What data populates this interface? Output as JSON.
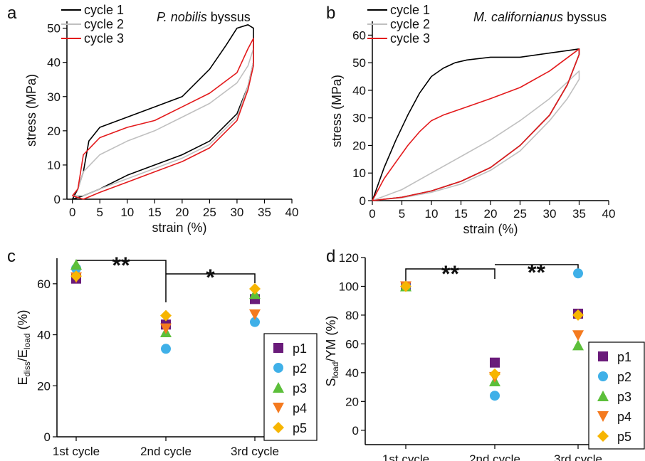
{
  "panels": [
    {
      "letter": "a",
      "title_italic": "P. nobilis",
      "title_rest": " byssus",
      "xlabel": "strain (%)",
      "ylabel": "stress (MPa)",
      "xticks": [
        "0",
        "5",
        "10",
        "15",
        "20",
        "25",
        "30",
        "35",
        "40"
      ],
      "yticks": [
        "0",
        "10",
        "20",
        "30",
        "40",
        "50"
      ],
      "legend": [
        "cycle 1",
        "cycle 2",
        "cycle 3"
      ]
    },
    {
      "letter": "b",
      "title_italic": "M. californianus",
      "title_rest": " byssus",
      "xlabel": "strain (%)",
      "ylabel": "stress (MPa)",
      "xticks": [
        "0",
        "5",
        "10",
        "15",
        "20",
        "25",
        "30",
        "35",
        "40"
      ],
      "yticks": [
        "0",
        "10",
        "20",
        "30",
        "40",
        "50",
        "60"
      ],
      "legend": [
        "cycle 1",
        "cycle 2",
        "cycle 3"
      ]
    },
    {
      "letter": "c",
      "ylabel_main": "E",
      "ylabel_sub1": "diss",
      "ylabel_mid": "/E",
      "ylabel_sub2": "load",
      "ylabel_end": " (%)",
      "xticks": [
        "1st cycle",
        "2nd cycle",
        "3rd cycle"
      ],
      "yticks": [
        "0",
        "20",
        "40",
        "60"
      ],
      "sig": [
        "**",
        "*"
      ],
      "legend": [
        "p1",
        "p2",
        "p3",
        "p4",
        "p5"
      ]
    },
    {
      "letter": "d",
      "ylabel_main": "S",
      "ylabel_sub1": "load",
      "ylabel_end": "/YM (%)",
      "xticks": [
        "1st cycle",
        "2nd cycle",
        "3rd cycle"
      ],
      "yticks": [
        "0",
        "20",
        "40",
        "60",
        "80",
        "100",
        "120"
      ],
      "sig": [
        "**",
        "**"
      ],
      "legend": [
        "p1",
        "p2",
        "p3",
        "p4",
        "p5"
      ]
    }
  ],
  "colors": {
    "cycle1": "#000000",
    "cycle2": "#c0c0c0",
    "cycle3": "#e31a1c",
    "p1": "#6a1b7a",
    "p2": "#3fb0e8",
    "p3": "#5cbf3a",
    "p4": "#f47a1f",
    "p5": "#f7b500"
  },
  "chart_data": [
    {
      "type": "line",
      "panel": "a",
      "xlim": [
        -1,
        40
      ],
      "ylim": [
        0,
        52
      ],
      "series": [
        {
          "name": "cycle 1",
          "x": [
            0,
            1,
            2,
            3,
            5,
            10,
            15,
            20,
            25,
            28,
            30,
            32,
            33,
            33,
            32,
            30,
            25,
            20,
            15,
            10,
            5,
            2,
            0
          ],
          "y": [
            0,
            3,
            8,
            17,
            21,
            24,
            27,
            30,
            38,
            45,
            50,
            51,
            50,
            40,
            33,
            25,
            17,
            13,
            10,
            7,
            3,
            1,
            0
          ]
        },
        {
          "name": "cycle 2",
          "x": [
            0,
            1,
            2,
            5,
            10,
            15,
            20,
            25,
            30,
            32,
            33,
            33,
            32,
            30,
            25,
            20,
            15,
            10,
            5,
            2,
            0
          ],
          "y": [
            1,
            3,
            8,
            13,
            17,
            20,
            24,
            28,
            34,
            39,
            44,
            40,
            33,
            24,
            16,
            12,
            9,
            6,
            3,
            1,
            1
          ]
        },
        {
          "name": "cycle 3",
          "x": [
            0,
            1,
            2,
            5,
            10,
            15,
            20,
            25,
            30,
            32,
            33,
            33,
            32,
            30,
            25,
            20,
            15,
            10,
            5,
            2,
            0
          ],
          "y": [
            1,
            3,
            13,
            18,
            21,
            23,
            27,
            31,
            37,
            44,
            47,
            39,
            32,
            23,
            15,
            11,
            8,
            5,
            2,
            0,
            1
          ]
        }
      ]
    },
    {
      "type": "line",
      "panel": "b",
      "xlim": [
        0,
        40
      ],
      "ylim": [
        0,
        65
      ],
      "series": [
        {
          "name": "cycle 1",
          "x": [
            0,
            2,
            4,
            6,
            8,
            10,
            12,
            14,
            16,
            20,
            25,
            30,
            35,
            35,
            33,
            30,
            25,
            20,
            15,
            10,
            5,
            2,
            0
          ],
          "y": [
            0,
            12,
            22,
            31,
            39,
            45,
            48,
            50,
            51,
            52,
            52,
            53.5,
            55,
            53,
            42,
            31,
            20,
            12,
            7,
            3.5,
            1.2,
            0.5,
            0
          ]
        },
        {
          "name": "cycle 2",
          "x": [
            0,
            5,
            10,
            15,
            20,
            25,
            30,
            35,
            35,
            33,
            30,
            25,
            20,
            15,
            10,
            5,
            2,
            0
          ],
          "y": [
            0,
            4,
            10,
            16,
            22,
            29,
            37,
            47,
            44,
            37,
            29,
            18,
            11,
            6,
            3,
            1,
            0.5,
            0
          ]
        },
        {
          "name": "cycle 3",
          "x": [
            0,
            2,
            4,
            6,
            8,
            10,
            12,
            14,
            16,
            20,
            25,
            30,
            35,
            35,
            33,
            30,
            25,
            20,
            15,
            10,
            5,
            2,
            0
          ],
          "y": [
            0,
            8,
            14,
            20,
            25,
            29,
            31,
            32.5,
            34,
            37,
            41,
            47,
            55,
            53,
            42,
            31,
            20,
            12,
            7,
            3.5,
            1.2,
            0.5,
            0
          ]
        }
      ]
    },
    {
      "type": "scatter",
      "panel": "c",
      "categories": [
        "1st cycle",
        "2nd cycle",
        "3rd cycle"
      ],
      "ylim": [
        0,
        70
      ],
      "series": [
        {
          "name": "p1",
          "marker": "square",
          "values": [
            62,
            44,
            54
          ]
        },
        {
          "name": "p2",
          "marker": "circle",
          "values": [
            66,
            34.5,
            45
          ]
        },
        {
          "name": "p3",
          "marker": "triangle-up",
          "values": [
            67.5,
            41,
            56
          ]
        },
        {
          "name": "p4",
          "marker": "triangle-down",
          "values": [
            62.5,
            42.5,
            48
          ]
        },
        {
          "name": "p5",
          "marker": "diamond",
          "values": [
            63,
            47.5,
            58
          ]
        }
      ]
    },
    {
      "type": "scatter",
      "panel": "d",
      "categories": [
        "1st cycle",
        "2nd cycle",
        "3rd cycle"
      ],
      "ylim": [
        -10,
        120
      ],
      "series": [
        {
          "name": "p1",
          "marker": "square",
          "values": [
            100,
            47,
            81
          ]
        },
        {
          "name": "p2",
          "marker": "circle",
          "values": [
            100,
            24,
            109
          ]
        },
        {
          "name": "p3",
          "marker": "triangle-up",
          "values": [
            100,
            34,
            59
          ]
        },
        {
          "name": "p4",
          "marker": "triangle-down",
          "values": [
            100,
            37,
            66
          ]
        },
        {
          "name": "p5",
          "marker": "diamond",
          "values": [
            100,
            39,
            80
          ]
        }
      ]
    }
  ]
}
